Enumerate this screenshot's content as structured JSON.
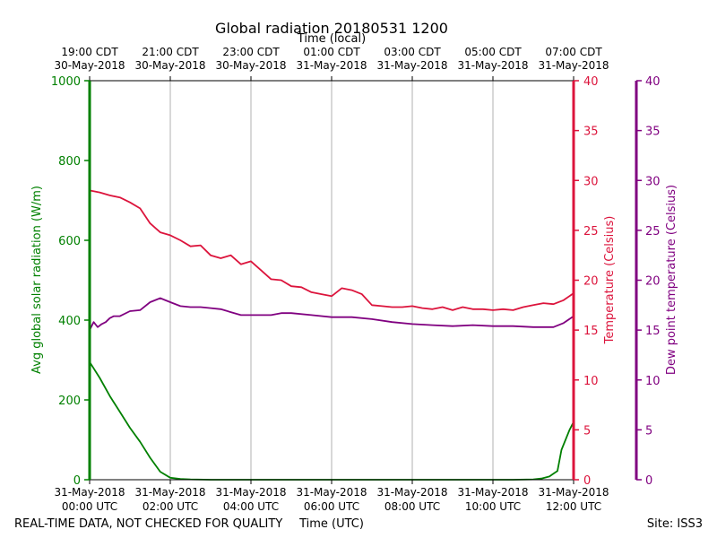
{
  "chart_data": {
    "type": "line",
    "title": "Global radiation 20180531 1200",
    "top_axis_label": "Time (local)",
    "bottom_axis_label": "Time (UTC)",
    "footer_left": "REAL-TIME DATA, NOT CHECKED FOR QUALITY",
    "footer_right": "Site: ISS3",
    "x_unit": "hours since 2018-05-31 00:00 UTC",
    "xlim": [
      0,
      12
    ],
    "bottom_ticks": [
      {
        "x": 0,
        "line1": "31-May-2018",
        "line2": "00:00 UTC"
      },
      {
        "x": 2,
        "line1": "31-May-2018",
        "line2": "02:00 UTC"
      },
      {
        "x": 4,
        "line1": "31-May-2018",
        "line2": "04:00 UTC"
      },
      {
        "x": 6,
        "line1": "31-May-2018",
        "line2": "06:00 UTC"
      },
      {
        "x": 8,
        "line1": "31-May-2018",
        "line2": "08:00 UTC"
      },
      {
        "x": 10,
        "line1": "31-May-2018",
        "line2": "10:00 UTC"
      },
      {
        "x": 12,
        "line1": "31-May-2018",
        "line2": "12:00 UTC"
      }
    ],
    "top_ticks": [
      {
        "x": 0,
        "line1": "19:00 CDT",
        "line2": "30-May-2018"
      },
      {
        "x": 2,
        "line1": "21:00 CDT",
        "line2": "30-May-2018"
      },
      {
        "x": 4,
        "line1": "23:00 CDT",
        "line2": "30-May-2018"
      },
      {
        "x": 6,
        "line1": "01:00 CDT",
        "line2": "31-May-2018"
      },
      {
        "x": 8,
        "line1": "03:00 CDT",
        "line2": "31-May-2018"
      },
      {
        "x": 10,
        "line1": "05:00 CDT",
        "line2": "31-May-2018"
      },
      {
        "x": 12,
        "line1": "07:00 CDT",
        "line2": "31-May-2018"
      }
    ],
    "axes": {
      "radiation": {
        "label": "Avg global solar radiation (W/m)",
        "ylim": [
          0,
          1000
        ],
        "ticks": [
          0,
          200,
          400,
          600,
          800,
          1000
        ],
        "color": "#008000"
      },
      "temperature": {
        "label": "Temperature (Celsius)",
        "ylim": [
          0,
          40
        ],
        "ticks": [
          0,
          5,
          10,
          15,
          20,
          25,
          30,
          35,
          40
        ],
        "color": "#dc143c"
      },
      "dewpoint": {
        "label": "Dew point temperature (Celsius)",
        "ylim": [
          0,
          40
        ],
        "ticks": [
          0,
          5,
          10,
          15,
          20,
          25,
          30,
          35,
          40
        ],
        "color": "#800080"
      }
    },
    "series": [
      {
        "name": "Avg global solar radiation",
        "axis": "radiation",
        "color": "#008000",
        "x": [
          0,
          0.25,
          0.5,
          0.75,
          1.0,
          1.25,
          1.5,
          1.75,
          2.0,
          2.25,
          2.5,
          3,
          4,
          5,
          6,
          7,
          8,
          9,
          10,
          10.5,
          11.0,
          11.2,
          11.4,
          11.5,
          11.6,
          11.7,
          11.8,
          11.9,
          12.0
        ],
        "values": [
          295,
          255,
          210,
          170,
          130,
          95,
          55,
          20,
          5,
          2,
          1,
          0,
          0,
          0,
          0,
          0,
          0,
          0,
          0,
          0,
          1,
          3,
          8,
          15,
          22,
          75,
          100,
          125,
          145
        ]
      },
      {
        "name": "Temperature",
        "axis": "temperature",
        "color": "#dc143c",
        "x": [
          0,
          0.25,
          0.5,
          0.75,
          1.0,
          1.25,
          1.5,
          1.75,
          2.0,
          2.25,
          2.5,
          2.75,
          3.0,
          3.25,
          3.5,
          3.75,
          4.0,
          4.25,
          4.5,
          4.75,
          5.0,
          5.25,
          5.5,
          5.75,
          6.0,
          6.25,
          6.5,
          6.75,
          7.0,
          7.25,
          7.5,
          7.75,
          8.0,
          8.25,
          8.5,
          8.75,
          9.0,
          9.25,
          9.5,
          9.75,
          10.0,
          10.25,
          10.5,
          10.75,
          11.0,
          11.25,
          11.5,
          11.75,
          12.0
        ],
        "values": [
          29.0,
          28.8,
          28.5,
          28.3,
          27.8,
          27.2,
          25.7,
          24.8,
          24.5,
          24.0,
          23.4,
          23.5,
          22.5,
          22.2,
          22.5,
          21.6,
          21.9,
          21.0,
          20.1,
          20.0,
          19.4,
          19.3,
          18.8,
          18.6,
          18.4,
          19.2,
          19.0,
          18.6,
          17.5,
          17.4,
          17.3,
          17.3,
          17.4,
          17.2,
          17.1,
          17.3,
          17.0,
          17.3,
          17.1,
          17.1,
          17.0,
          17.1,
          17.0,
          17.3,
          17.5,
          17.7,
          17.6,
          18.0,
          18.7
        ]
      },
      {
        "name": "Dew point temperature",
        "axis": "dewpoint",
        "color": "#800080",
        "x": [
          0,
          0.1,
          0.2,
          0.3,
          0.4,
          0.5,
          0.6,
          0.75,
          1.0,
          1.25,
          1.5,
          1.75,
          2.0,
          2.25,
          2.5,
          2.75,
          3.0,
          3.25,
          3.5,
          3.75,
          4.0,
          4.25,
          4.5,
          4.75,
          5.0,
          5.5,
          6.0,
          6.5,
          7.0,
          7.5,
          8.0,
          8.5,
          9.0,
          9.5,
          10.0,
          10.5,
          11.0,
          11.5,
          11.75,
          12.0
        ],
        "values": [
          15.0,
          15.8,
          15.3,
          15.6,
          15.8,
          16.2,
          16.4,
          16.4,
          16.9,
          17.0,
          17.8,
          18.2,
          17.8,
          17.4,
          17.3,
          17.3,
          17.2,
          17.1,
          16.8,
          16.5,
          16.5,
          16.5,
          16.5,
          16.7,
          16.7,
          16.5,
          16.3,
          16.3,
          16.1,
          15.8,
          15.6,
          15.5,
          15.4,
          15.5,
          15.4,
          15.4,
          15.3,
          15.3,
          15.7,
          16.4
        ]
      }
    ]
  }
}
